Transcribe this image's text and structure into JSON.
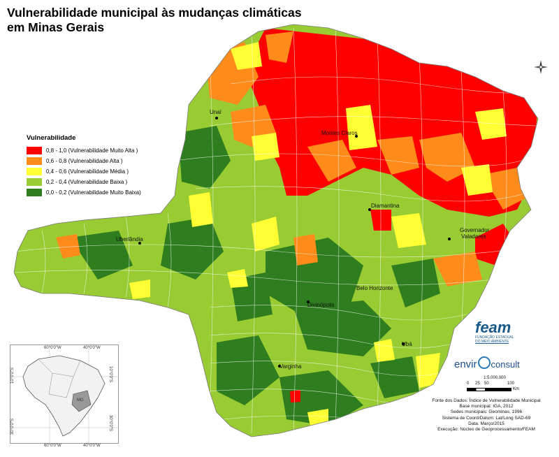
{
  "title_line1": "Vulnerabilidade municipal às mudanças climáticas",
  "title_line2": "em Minas Gerais",
  "legend": {
    "title": "Vulnerabilidade",
    "items": [
      {
        "label": "0,8 - 1,0 (Vulnerabilidade Muito Alta )",
        "color": "#ff0000"
      },
      {
        "label": "0,6 - 0,8 (Vulnerabilidade Alta )",
        "color": "#ff8c1a"
      },
      {
        "label": "0,4 - 0,6 (Vulnerabilidade Média )",
        "color": "#ffff33"
      },
      {
        "label": "0,2 - 0,4 (Vulnerabilidade Baixa )",
        "color": "#99cc33"
      },
      {
        "label": "0,0 - 0,2 (Vulnerabilidade Muito Baixa)",
        "color": "#2e7d1e"
      }
    ]
  },
  "cities": {
    "unai": "Unaí",
    "montes_claros": "Montes Claros",
    "diamantina": "Diamantina",
    "governador_valadares_1": "Governador",
    "governador_valadares_2": "Valadares",
    "uberlandia": "Uberlândia",
    "belo_horizonte": "Belo Horizonte",
    "divinopolis": "Divinópolis",
    "uba": "Ubá",
    "varginha": "Varginha"
  },
  "inset": {
    "lon1": "60°0'0\"W",
    "lon2": "40°0'0\"W",
    "lon1_bottom": "60°0'0\"W",
    "lon2_bottom": "40°0'0\"W",
    "lat1_left": "10°0'0\"S",
    "lat1_right": "10°0'0\"S",
    "lat2_left": "30°0'0\"S",
    "lat2_right": "30°0'0\"S",
    "state_label": "MG"
  },
  "scale": {
    "ratio": "1:5.000.000",
    "ticks": [
      "0",
      "25",
      "50",
      "100"
    ],
    "unit": "Km"
  },
  "source": {
    "line1": "Fonte dos Dados: Índice de Vulnerabilidade Municipal",
    "line2": "Base municipal: IGA, 2012",
    "line3": "Sedes municipais: Geominas, 1996",
    "line4": "Sistema de Coord/Datum: Lat/Long  SAD-69",
    "line5": "Data: Março/2015",
    "line6": "Execução: Núcleo de Geoprocessamento/FEAM"
  },
  "logos": {
    "feam": "feam",
    "feam_sub1": "FUNDAÇÃO ESTADUAL",
    "feam_sub2": "DO MEIO AMBIENTE",
    "envir": "envir",
    "consult": "consult"
  },
  "colors": {
    "very_high": "#ff0000",
    "high": "#ff8c1a",
    "medium": "#ffff33",
    "low": "#99cc33",
    "very_low": "#2e7d1e"
  }
}
